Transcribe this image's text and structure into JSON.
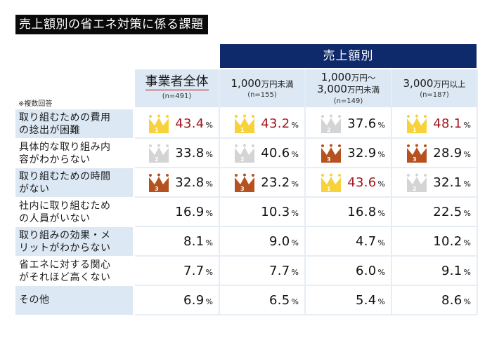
{
  "title": "売上額別の省エネ対策に係る課題",
  "group_header": "売上額別",
  "note": "※複数回答",
  "columns": [
    {
      "label": "事業者全体",
      "label2": "",
      "n": "(n=491)"
    },
    {
      "label": "1,000",
      "unit": "万円未満",
      "label2": "",
      "n": "(n=155)"
    },
    {
      "label": "1,000",
      "unit": "万円～",
      "label2": "3,000",
      "unit2": "万円未満",
      "n": "(n=149)"
    },
    {
      "label": "3,000",
      "unit": "万円以上",
      "label2": "",
      "n": "(n=187)"
    }
  ],
  "pct_sign": "%",
  "rank_colors": {
    "1": "#f7d23a",
    "2": "#d4d4d4",
    "3": "#b5521f"
  },
  "highlight_color": "#a3151d",
  "rows": [
    {
      "label_line1": "取り組むための費用",
      "label_line2": "の捻出が困難",
      "values": [
        "43.4",
        "43.2",
        "37.6",
        "48.1"
      ],
      "ranks": [
        1,
        1,
        2,
        1
      ]
    },
    {
      "label_line1": "具体的な取り組み内",
      "label_line2": "容がわからない",
      "values": [
        "33.8",
        "40.6",
        "32.9",
        "28.9"
      ],
      "ranks": [
        2,
        2,
        3,
        3
      ]
    },
    {
      "label_line1": "取り組むための時間",
      "label_line2": "がない",
      "values": [
        "32.8",
        "23.2",
        "43.6",
        "32.1"
      ],
      "ranks": [
        3,
        3,
        1,
        2
      ]
    },
    {
      "label_line1": "社内に取り組むため",
      "label_line2": "の人員がいない",
      "values": [
        "16.9",
        "10.3",
        "16.8",
        "22.5"
      ],
      "ranks": [
        0,
        0,
        0,
        0
      ]
    },
    {
      "label_line1": "取り組みの効果・メ",
      "label_line2": "リットがわからない",
      "values": [
        "8.1",
        "9.0",
        "4.7",
        "10.2"
      ],
      "ranks": [
        0,
        0,
        0,
        0
      ]
    },
    {
      "label_line1": "省エネに対する関心",
      "label_line2": "がそれほど高くない",
      "values": [
        "7.7",
        "7.7",
        "6.0",
        "9.1"
      ],
      "ranks": [
        0,
        0,
        0,
        0
      ]
    },
    {
      "label_line1": "その他",
      "label_line2": "",
      "values": [
        "6.9",
        "6.5",
        "5.4",
        "8.6"
      ],
      "ranks": [
        0,
        0,
        0,
        0
      ]
    }
  ]
}
